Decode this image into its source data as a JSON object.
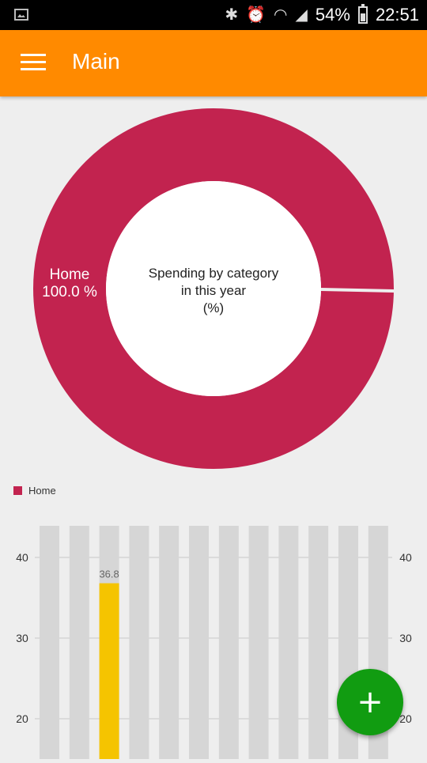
{
  "status_bar": {
    "battery": "54%",
    "time": "22:51",
    "icons": [
      "image-icon",
      "bluetooth-icon",
      "alarm-icon",
      "wifi-icon",
      "signal-icon",
      "battery-icon"
    ]
  },
  "app_bar": {
    "title": "Main",
    "color": "#ff8a00"
  },
  "donut": {
    "center_lines": [
      "Spending by category",
      "in this year",
      "(%)"
    ],
    "slice_color": "#c2234f",
    "slices": [
      {
        "label": "Home",
        "value_text": "100.0 %",
        "value": 100.0
      }
    ]
  },
  "legend": {
    "items": [
      {
        "label": "Home",
        "color": "#c2234f"
      }
    ]
  },
  "chart_data": {
    "type": "bar",
    "categories": [
      "",
      "",
      "",
      "",
      "",
      "",
      "",
      "",
      "",
      "",
      "",
      ""
    ],
    "values": [
      0,
      0,
      36.8,
      0,
      0,
      0,
      0,
      0,
      0,
      0,
      0,
      0
    ],
    "data_labels": [
      "",
      "",
      "36.8",
      "",
      "",
      "",
      "",
      "",
      "",
      "",
      "",
      ""
    ],
    "yticks": [
      20,
      30,
      40
    ],
    "y_axis_left": true,
    "y_axis_right": true,
    "bar_color": "#f5c400",
    "track_color": "#d6d6d6",
    "grid": true
  },
  "fab": {
    "label": "+",
    "color": "#119c11"
  }
}
